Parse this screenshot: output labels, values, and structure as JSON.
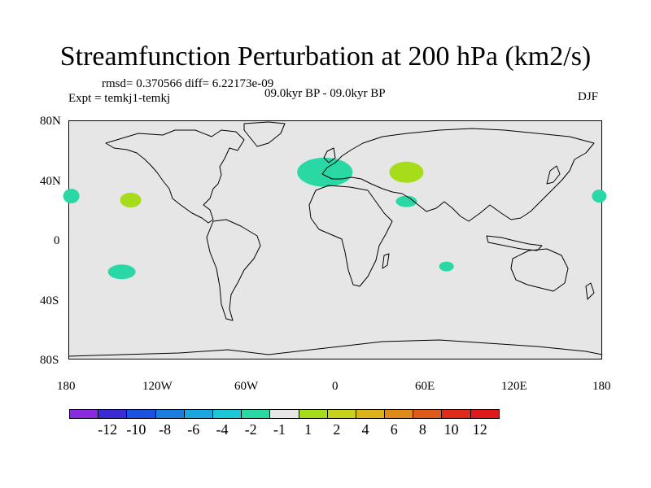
{
  "title": "Streamfunction Perturbation at 200 hPa (km2/s)",
  "stats": "rmsd= 0.370566 diff= 6.22173e-09",
  "expt": "Expt = temkj1-temkj",
  "period": "09.0kyr BP - 09.0kyr BP",
  "season": "DJF",
  "lat_ticks": [
    "80N",
    "40N",
    "0",
    "40S",
    "80S"
  ],
  "lon_ticks": [
    "180",
    "120W",
    "60W",
    "0",
    "60E",
    "120E",
    "180"
  ],
  "colorbar": {
    "labels": [
      "-12",
      "-10",
      "-8",
      "-6",
      "-4",
      "-2",
      "-1",
      "1",
      "2",
      "4",
      "6",
      "8",
      "10",
      "12"
    ],
    "colors": [
      "#8a2be2",
      "#3a2bd6",
      "#1a52e0",
      "#1a7ee0",
      "#1aa6e0",
      "#1ac8d8",
      "#2ad8a6",
      "#e6e6e6",
      "#a6dc1a",
      "#c8d21a",
      "#dcb41a",
      "#e08a1a",
      "#e05a1a",
      "#e02a1a",
      "#e01a1a"
    ]
  },
  "anomalies": [
    {
      "name": "north-atlantic",
      "lon": -7,
      "lat": 51,
      "level": "-2 to -1"
    },
    {
      "name": "eastern-europe",
      "lon": 48,
      "lat": 51,
      "level": "1 to 2"
    },
    {
      "name": "middle-east",
      "lon": 48,
      "lat": 29,
      "level": "-2 to -1"
    },
    {
      "name": "indian-ocean",
      "lon": 75,
      "lat": -20,
      "level": "-2 to -1"
    },
    {
      "name": "north-pacific-west",
      "lon": 178,
      "lat": 33,
      "level": "-2 to -1"
    },
    {
      "name": "north-pacific-east",
      "lon": -178,
      "lat": 33,
      "level": "-2 to -1"
    },
    {
      "name": "central-pacific",
      "lon": -138,
      "lat": 30,
      "level": "1 to 2"
    },
    {
      "name": "south-pacific",
      "lon": -144,
      "lat": -24,
      "level": "-2 to -1"
    }
  ]
}
